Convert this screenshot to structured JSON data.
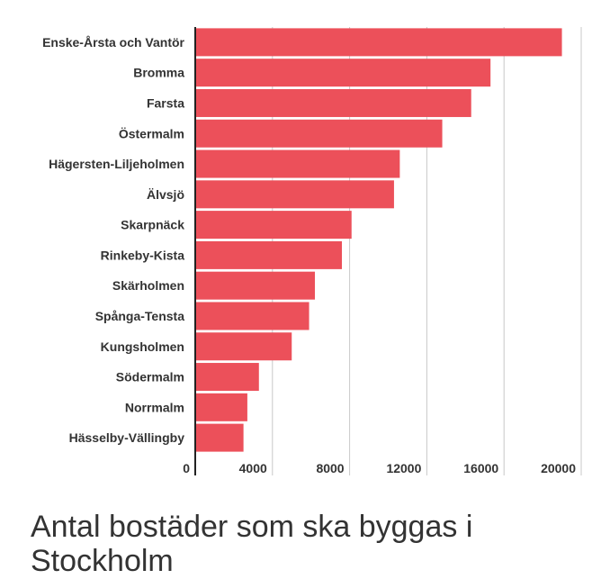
{
  "chart_data": {
    "type": "bar",
    "orientation": "horizontal",
    "title": "Antal bostäder som ska byggas i Stockholm",
    "categories": [
      "Enske-Årsta och Vantör",
      "Bromma",
      "Farsta",
      "Östermalm",
      "Hägersten-Liljeholmen",
      "Älvsjö",
      "Skarpnäck",
      "Rinkeby-Kista",
      "Skärholmen",
      "Spånga-Tensta",
      "Kungsholmen",
      "Södermalm",
      "Norrmalm",
      "Hässelby-Vällingby"
    ],
    "values": [
      19000,
      15300,
      14300,
      12800,
      10600,
      10300,
      8100,
      7600,
      6200,
      5900,
      5000,
      3300,
      2700,
      2500
    ],
    "xlim": [
      0,
      20000
    ],
    "xticks": [
      0,
      4000,
      8000,
      12000,
      16000,
      20000
    ],
    "xlabel": "",
    "ylabel": "",
    "grid": true,
    "legend": "none",
    "bar_color": "#ec505a"
  }
}
